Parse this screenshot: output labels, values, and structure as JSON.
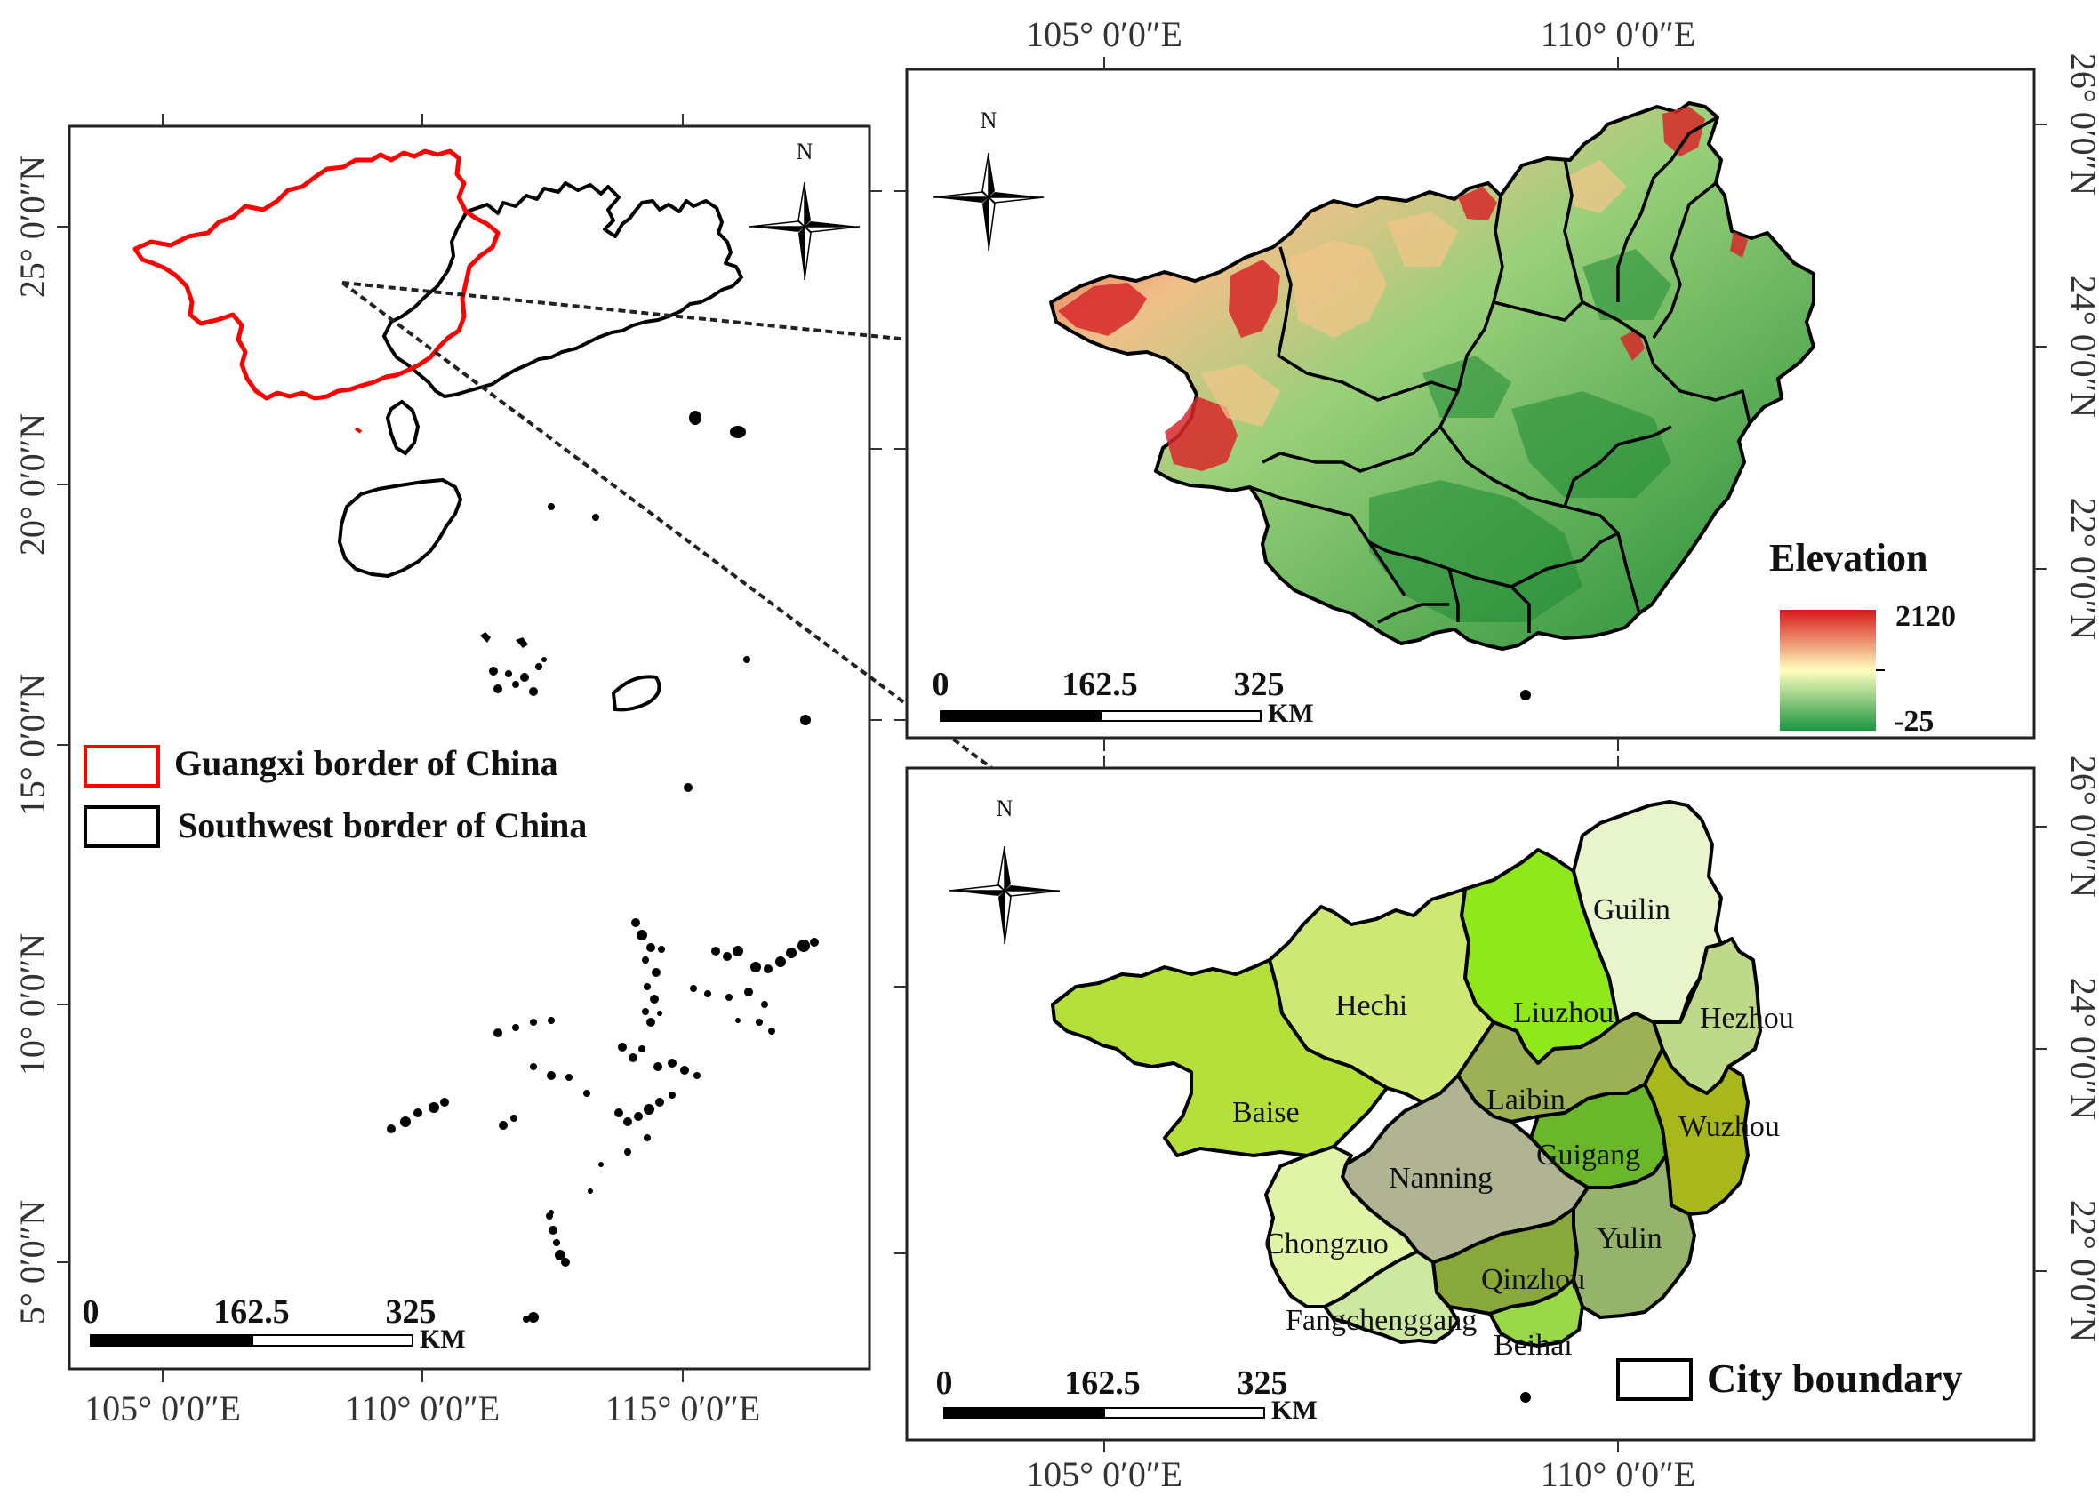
{
  "overview_panel": {
    "lat_labels": [
      "25° 0′0″N",
      "20° 0′0″N",
      "15° 0′0″N",
      "10° 0′0″N",
      "5° 0′0″N"
    ],
    "lon_labels": [
      "105° 0′0″E",
      "110° 0′0″E",
      "115° 0′0″E"
    ],
    "legend": [
      {
        "label": "Guangxi border of China",
        "color": "#ff0000"
      },
      {
        "label": "Southwest border of China",
        "color": "#000000"
      }
    ],
    "north": "N",
    "scale": {
      "ticks": [
        "0",
        "162.5",
        "325"
      ],
      "unit": "KM"
    }
  },
  "elevation_panel": {
    "lon_labels": [
      "105° 0′0″E",
      "110° 0′0″E"
    ],
    "lat_labels": [
      "26° 0′0″N",
      "24° 0′0″N",
      "22° 0′0″N"
    ],
    "north": "N",
    "legend_title": "Elevation",
    "legend_max": "2120",
    "legend_min": "-25",
    "colors": {
      "high": "#d7191c",
      "mid": "#ffffbf",
      "low": "#1a9641"
    },
    "scale": {
      "ticks": [
        "0",
        "162.5",
        "325"
      ],
      "unit": "KM"
    }
  },
  "city_panel": {
    "lon_labels": [
      "105° 0′0″E",
      "110° 0′0″E"
    ],
    "lat_labels": [
      "26° 0′0″N",
      "24° 0′0″N",
      "22° 0′0″N"
    ],
    "north": "N",
    "legend_label": "City boundary",
    "scale": {
      "ticks": [
        "0",
        "162.5",
        "325"
      ],
      "unit": "KM"
    },
    "cities": [
      {
        "name": "Guilin",
        "color": "#e8f5cc"
      },
      {
        "name": "Hezhou",
        "color": "#bfd98a"
      },
      {
        "name": "Liuzhou",
        "color": "#8ee81a"
      },
      {
        "name": "Hechi",
        "color": "#cde873"
      },
      {
        "name": "Baise",
        "color": "#b5e03a"
      },
      {
        "name": "Laibin",
        "color": "#9cb055"
      },
      {
        "name": "Wuzhou",
        "color": "#a8b81a"
      },
      {
        "name": "Guigang",
        "color": "#6ab82a"
      },
      {
        "name": "Nanning",
        "color": "#b0b492"
      },
      {
        "name": "Yulin",
        "color": "#95b36a"
      },
      {
        "name": "Chongzuo",
        "color": "#e0f5a8"
      },
      {
        "name": "Qinzhou",
        "color": "#88a83a"
      },
      {
        "name": "Fangchenggang",
        "color": "#cde8a0"
      },
      {
        "name": "Beihai",
        "color": "#9ad84a"
      }
    ]
  }
}
